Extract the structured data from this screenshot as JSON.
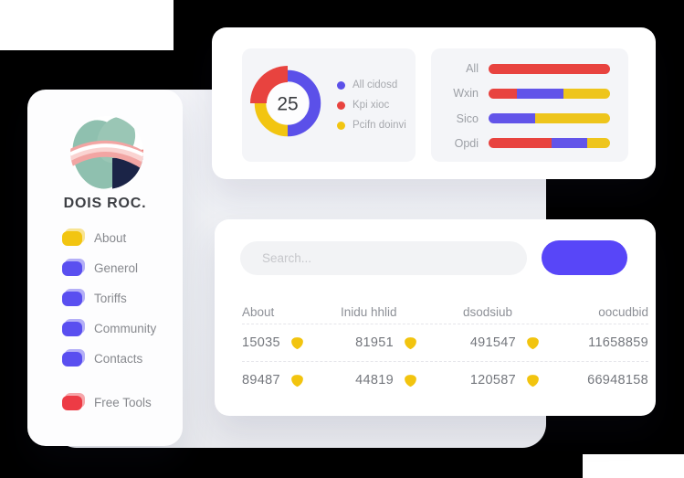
{
  "brand": {
    "name": "DOIS ROC."
  },
  "sidebar": {
    "items": [
      {
        "label": "About",
        "color": "#f2c511"
      },
      {
        "label": "Generol",
        "color": "#5a4ff0"
      },
      {
        "label": "Toriffs",
        "color": "#5a4ff0"
      },
      {
        "label": "Community",
        "color": "#5a4ff0"
      },
      {
        "label": "Contacts",
        "color": "#5a4ff0"
      },
      {
        "label": "Free Tools",
        "color": "#ed3b45"
      }
    ]
  },
  "chart_data": [
    {
      "type": "pie",
      "donut": true,
      "labels": [
        "All cidosd",
        "Kpi xioc",
        "Pcifn doinvi"
      ],
      "values": [
        50,
        25,
        25
      ],
      "colors": [
        "#5b50e9",
        "#e8433f",
        "#f2c511"
      ],
      "center_label": "25",
      "legend_position": "right",
      "note": "red 25% segment is emphasized (square outer corner, larger radius)"
    },
    {
      "type": "bar",
      "orientation": "horizontal",
      "stacked": true,
      "categories": [
        "All",
        "Wxin",
        "Sico",
        "Opdi"
      ],
      "series": [
        {
          "name": "red",
          "color": "#e8433f",
          "values": [
            100,
            23,
            0,
            52
          ]
        },
        {
          "name": "violet",
          "color": "#6254e9",
          "values": [
            0,
            38.5,
            38,
            29
          ]
        },
        {
          "name": "yellow",
          "color": "#eec51c",
          "values": [
            0,
            38.5,
            62,
            19
          ]
        }
      ],
      "xlim": [
        0,
        100
      ],
      "value_unit": "percent"
    }
  ],
  "search": {
    "placeholder": "Search..."
  },
  "primary_button": {
    "label": ""
  },
  "table": {
    "headers": [
      "About",
      "Inidu hhlid",
      "dsodsiub",
      "oocudbid"
    ],
    "rows": [
      {
        "cells": [
          "15035",
          "81951",
          "491547",
          "11658859"
        ]
      },
      {
        "cells": [
          "89487",
          "44819",
          "120587",
          "66948158"
        ]
      }
    ]
  },
  "colors": {
    "accent": "#5846f8",
    "panel": "#f4f5f8",
    "badge": "#f2c40f"
  }
}
